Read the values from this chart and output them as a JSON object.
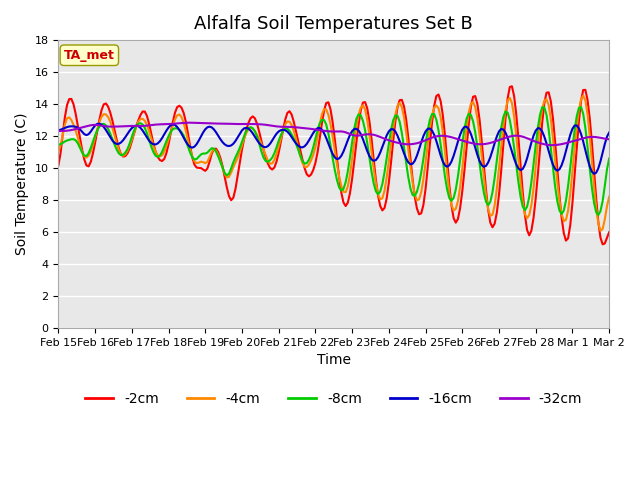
{
  "title": "Alfalfa Soil Temperatures Set B",
  "xlabel": "Time",
  "ylabel": "Soil Temperature (C)",
  "ylim": [
    0,
    18
  ],
  "yticks": [
    0,
    2,
    4,
    6,
    8,
    10,
    12,
    14,
    16,
    18
  ],
  "background_color": "#ffffff",
  "plot_bg_color": "#e8e8e8",
  "title_fontsize": 13,
  "label_fontsize": 10,
  "tick_fontsize": 8,
  "annotation_text": "TA_met",
  "annotation_color": "#cc0000",
  "annotation_bg": "#ffffcc",
  "series_colors": {
    "-2cm": "#ff0000",
    "-4cm": "#ff8800",
    "-8cm": "#00cc00",
    "-16cm": "#0000cc",
    "-32cm": "#9900cc"
  },
  "x_tick_labels": [
    "Feb 15",
    "Feb 16",
    "Feb 17",
    "Feb 18",
    "Feb 19",
    "Feb 20",
    "Feb 21",
    "Feb 22",
    "Feb 23",
    "Feb 24",
    "Feb 25",
    "Feb 26",
    "Feb 27",
    "Feb 28",
    "Mar 1",
    "Mar 2"
  ],
  "n_points": 256
}
